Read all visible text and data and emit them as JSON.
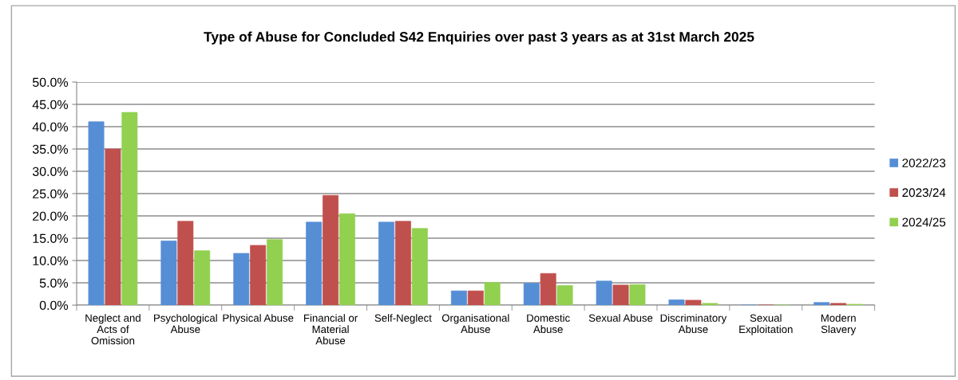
{
  "chart_data": {
    "type": "bar",
    "title": "Type of Abuse for Concluded S42 Enquiries over past 3 years as at 31st March 2025",
    "categories": [
      "Neglect and\nActs of\nOmission",
      "Psychological\nAbuse",
      "Physical Abuse",
      "Financial or\nMaterial\nAbuse",
      "Self-Neglect",
      "Organisational\nAbuse",
      "Domestic\nAbuse",
      "Sexual Abuse",
      "Discriminatory\nAbuse",
      "Sexual\nExploitation",
      "Modern\nSlavery"
    ],
    "series": [
      {
        "name": "2022/23",
        "color": "#558ed5",
        "values": [
          41.1,
          14.4,
          11.6,
          18.6,
          18.6,
          3.2,
          4.9,
          5.4,
          1.2,
          0,
          0.6
        ]
      },
      {
        "name": "2023/24",
        "color": "#c0504d",
        "values": [
          35.0,
          18.8,
          13.4,
          24.6,
          18.8,
          3.2,
          7.1,
          4.5,
          1.1,
          0,
          0.4
        ]
      },
      {
        "name": "2024/25",
        "color": "#92d050",
        "values": [
          43.2,
          12.2,
          14.7,
          20.5,
          17.2,
          5.1,
          4.4,
          4.6,
          0.4,
          0,
          0.2
        ]
      }
    ],
    "ylim": [
      0,
      50
    ],
    "yticks": [
      {
        "value": 0,
        "label": "0.0%"
      },
      {
        "value": 5,
        "label": "5.0%"
      },
      {
        "value": 10,
        "label": "10.0%"
      },
      {
        "value": 15,
        "label": "15.0%"
      },
      {
        "value": 20,
        "label": "20.0%"
      },
      {
        "value": 25,
        "label": "25.0%"
      },
      {
        "value": 30,
        "label": "30.0%"
      },
      {
        "value": 35,
        "label": "35.0%"
      },
      {
        "value": 40,
        "label": "40.0%"
      },
      {
        "value": 45,
        "label": "45.0%"
      },
      {
        "value": 50,
        "label": "50.0%"
      }
    ],
    "grid": "y",
    "legend": "right"
  }
}
